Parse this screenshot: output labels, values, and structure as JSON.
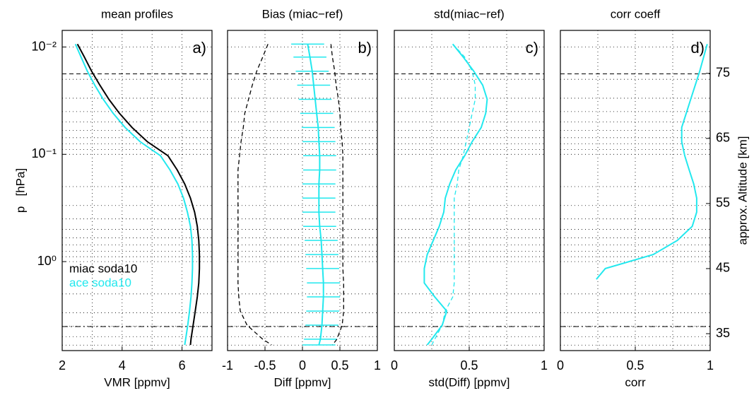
{
  "chart_data": [
    {
      "type": "line",
      "title": "mean profiles",
      "annotation": "a)",
      "xlabel": "VMR [ppmv]",
      "ylabel": "p   [hPa]",
      "xlim": [
        2,
        7
      ],
      "xticks": [
        2,
        4,
        6
      ],
      "xgrid": [
        3,
        4,
        5,
        6
      ],
      "yscale": "log",
      "ylim": [
        6.75,
        0.007
      ],
      "yticks": [
        {
          "value": 0.01,
          "label": "10⁻²"
        },
        {
          "value": 0.1,
          "label": "10⁻¹"
        },
        {
          "value": 1,
          "label": "10⁰"
        }
      ],
      "yminor": [
        0.02,
        0.03,
        0.04,
        0.05,
        0.06,
        0.07,
        0.08,
        0.09,
        0.2,
        0.3,
        0.4,
        0.5,
        0.6,
        0.7,
        0.8,
        0.9,
        2,
        3,
        4,
        5,
        6
      ],
      "hlines": [
        {
          "value": 0.0178,
          "style": "dashed"
        },
        {
          "value": 4.03,
          "style": "dashdot"
        }
      ],
      "legend": "lower left",
      "y": [
        0.0094,
        0.0124,
        0.0168,
        0.0227,
        0.0307,
        0.0415,
        0.0562,
        0.0762,
        0.103,
        0.14,
        0.189,
        0.256,
        0.346,
        0.469,
        0.635,
        0.859,
        1.16,
        1.58,
        2.13,
        2.89,
        3.91,
        5.29,
        5.98
      ],
      "series": [
        {
          "name": "miac soda10",
          "color": "#000000",
          "style": "solid",
          "values": [
            2.51,
            2.74,
            2.98,
            3.26,
            3.56,
            3.91,
            4.33,
            4.84,
            5.53,
            5.84,
            6.09,
            6.28,
            6.42,
            6.51,
            6.56,
            6.58,
            6.58,
            6.56,
            6.51,
            6.44,
            6.37,
            6.3,
            6.28
          ]
        },
        {
          "name": "ace soda10",
          "color": "#22e8ee",
          "style": "solid",
          "values": [
            2.44,
            2.63,
            2.84,
            3.09,
            3.37,
            3.7,
            4.1,
            4.6,
            5.28,
            5.6,
            5.86,
            6.05,
            6.18,
            6.28,
            6.33,
            6.35,
            6.35,
            6.33,
            6.3,
            6.25,
            6.19,
            6.12,
            6.09
          ]
        }
      ]
    },
    {
      "type": "line",
      "title": "Bias (miac−ref)",
      "annotation": "b)",
      "xlabel": "Diff [ppmv]",
      "xlim": [
        -1,
        1
      ],
      "xticks": [
        -1,
        -0.5,
        0,
        0.5,
        1
      ],
      "xgrid": [
        -0.5,
        0,
        0.5
      ],
      "y": [
        0.0094,
        0.0124,
        0.0168,
        0.0227,
        0.0307,
        0.0415,
        0.0562,
        0.0762,
        0.103,
        0.14,
        0.189,
        0.256,
        0.346,
        0.469,
        0.635,
        0.859,
        1.16,
        1.58,
        2.13,
        2.89,
        3.91,
        5.29,
        5.98
      ],
      "series": [
        {
          "color": "#22e8ee",
          "style": "solid",
          "values": [
            0.07,
            0.1,
            0.13,
            0.15,
            0.17,
            0.19,
            0.21,
            0.22,
            0.23,
            0.23,
            0.22,
            0.22,
            0.22,
            0.23,
            0.25,
            0.26,
            0.27,
            0.28,
            0.28,
            0.27,
            0.26,
            0.24,
            0.22
          ],
          "errors": [
            0.22,
            0.22,
            0.22,
            0.22,
            0.22,
            0.22,
            0.22,
            0.22,
            0.22,
            0.22,
            0.22,
            0.22,
            0.22,
            0.22,
            0.22,
            0.22,
            0.22,
            0.22,
            0.22,
            0.22,
            0.22,
            0.22,
            0.22
          ]
        },
        {
          "color": "#000000",
          "style": "dashed",
          "values": [
            -0.46,
            -0.53,
            -0.61,
            -0.67,
            -0.72,
            -0.77,
            -0.79,
            -0.82,
            -0.84,
            -0.86,
            -0.86,
            -0.86,
            -0.86,
            -0.86,
            -0.86,
            -0.86,
            -0.86,
            -0.86,
            -0.85,
            -0.83,
            -0.74,
            -0.53,
            -0.41
          ]
        },
        {
          "color": "#000000",
          "style": "dashed",
          "values": [
            0.38,
            0.4,
            0.43,
            0.45,
            0.48,
            0.5,
            0.51,
            0.53,
            0.54,
            0.54,
            0.54,
            0.54,
            0.54,
            0.54,
            0.54,
            0.54,
            0.54,
            0.55,
            0.55,
            0.55,
            0.53,
            0.46,
            0.4
          ]
        }
      ]
    },
    {
      "type": "line",
      "title": "std(miac−ref)",
      "annotation": "c)",
      "xlabel": "std(Diff) [ppmv]",
      "xlim": [
        0,
        1
      ],
      "xticks": [
        0,
        0.5,
        1
      ],
      "xgrid": [
        0.25,
        0.5,
        0.75
      ],
      "y": [
        0.0094,
        0.0124,
        0.0168,
        0.0227,
        0.0307,
        0.0415,
        0.0562,
        0.0762,
        0.103,
        0.14,
        0.189,
        0.256,
        0.346,
        0.469,
        0.635,
        0.859,
        1.16,
        1.58,
        2.13,
        2.89,
        3.91,
        5.29,
        5.98
      ],
      "series": [
        {
          "color": "#22e8ee",
          "style": "solid",
          "values": [
            0.39,
            0.46,
            0.53,
            0.59,
            0.62,
            0.61,
            0.58,
            0.52,
            0.47,
            0.41,
            0.37,
            0.34,
            0.33,
            0.3,
            0.26,
            0.22,
            0.2,
            0.2,
            0.27,
            0.35,
            0.32,
            0.25,
            0.22
          ]
        },
        {
          "color": "#22e8ee",
          "style": "dashed",
          "values": [
            0.39,
            0.47,
            0.52,
            0.54,
            0.54,
            0.52,
            0.5,
            0.48,
            0.46,
            0.43,
            0.42,
            0.4,
            0.4,
            0.4,
            0.4,
            0.4,
            0.4,
            0.4,
            0.39,
            0.34,
            0.32,
            0.27,
            0.25
          ]
        }
      ]
    },
    {
      "type": "line",
      "title": "corr coeff",
      "annotation": "d)",
      "xlabel": "corr",
      "xlim": [
        0,
        1
      ],
      "xticks": [
        0,
        0.5,
        1
      ],
      "xgrid": [
        0.25,
        0.5,
        0.75
      ],
      "y2label": "approx. Altitude [km]",
      "y2lim": [
        32.4,
        81.6
      ],
      "y2ticks": [
        35,
        45,
        55,
        65,
        75
      ],
      "y": [
        0.0094,
        0.0168,
        0.0307,
        0.0415,
        0.0562,
        0.0762,
        0.103,
        0.14,
        0.189,
        0.256,
        0.346,
        0.469,
        0.635,
        0.859,
        1.16,
        1.46
      ],
      "series": [
        {
          "color": "#22e8ee",
          "style": "solid",
          "values": [
            0.98,
            0.93,
            0.87,
            0.84,
            0.81,
            0.81,
            0.83,
            0.86,
            0.89,
            0.91,
            0.91,
            0.88,
            0.78,
            0.62,
            0.3,
            0.24
          ]
        }
      ]
    }
  ]
}
